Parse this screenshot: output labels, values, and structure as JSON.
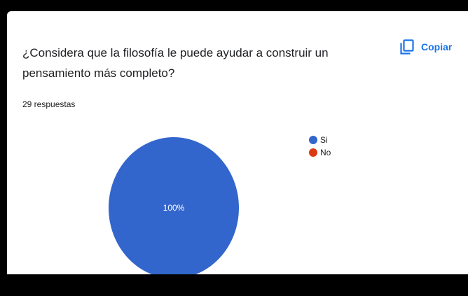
{
  "card": {
    "question": "¿Considera que la filosofía le puede ayudar a construir un pensamiento más completo?",
    "copy_label": "Copiar",
    "copy_icon": "copy-icon",
    "responses_text": "29 respuestas"
  },
  "colors": {
    "accent": "#1a73e8",
    "frame": "#000000"
  },
  "chart_data": {
    "type": "pie",
    "categories": [
      "Si",
      "No"
    ],
    "values": [
      100,
      0
    ],
    "value_labels": [
      "100%",
      ""
    ],
    "colors": [
      "#3366cc",
      "#dc3912"
    ],
    "legend_position": "right"
  }
}
